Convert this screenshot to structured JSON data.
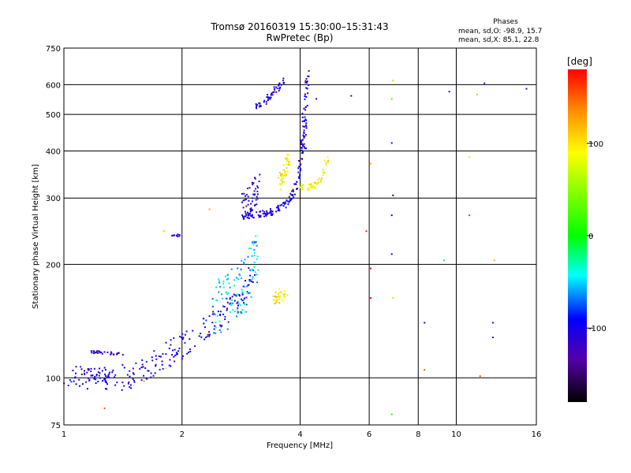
{
  "chart_data": {
    "type": "scatter",
    "title": "Tromsø 20160319 15:30:00–15:31:43",
    "subtitle": "RwPretec (Bp)",
    "xlabel": "Frequency [MHz]",
    "ylabel": "Stationary phase Virtual Height [km]",
    "x_scale": "log",
    "y_scale": "log",
    "xlim": [
      1,
      16
    ],
    "ylim": [
      75,
      750
    ],
    "grid": true,
    "x_ticks": [
      "1",
      "2",
      "4",
      "6",
      "8",
      "10",
      "16"
    ],
    "x_tick_values": [
      1,
      2,
      4,
      6,
      8,
      10,
      16
    ],
    "y_ticks": [
      "750",
      "600",
      "500",
      "400",
      "300",
      "200",
      "100",
      "75"
    ],
    "y_tick_values": [
      750,
      600,
      500,
      400,
      300,
      200,
      100,
      75
    ],
    "phase_stats": {
      "title": "Phases",
      "line_o": "mean, sd,O: -98.9, 15.7",
      "line_x": "mean, sd,X:  85.1, 22.8"
    },
    "colorbar": {
      "label": "[deg]",
      "range": [
        -180,
        180
      ],
      "ticks": [
        "100",
        "0",
        "-100"
      ],
      "tick_values": [
        100,
        0,
        -100
      ]
    },
    "traces": [
      {
        "x": [
          1.0,
          1.12,
          1.25,
          1.4,
          1.5,
          1.62,
          1.75,
          1.9,
          2.0,
          2.15,
          2.35,
          2.55,
          2.75,
          2.9,
          3.05
        ],
        "y": [
          100,
          99,
          98.5,
          99.5,
          102,
          106,
          112,
          118,
          122,
          128,
          138,
          148,
          160,
          175,
          192
        ],
        "spread": 0.08,
        "phase": -105,
        "n": 220
      },
      {
        "x": [
          2.4,
          2.6,
          2.8,
          3.0,
          3.1
        ],
        "y": [
          150,
          160,
          172,
          188,
          205
        ],
        "spread": 0.18,
        "phase": -50,
        "n": 110
      },
      {
        "x": [
          1.18,
          1.25,
          1.35,
          1.45
        ],
        "y": [
          117,
          116.5,
          116,
          116
        ],
        "spread": 0.01,
        "phase": -110,
        "n": 30
      },
      {
        "x": [
          1.12,
          1.2,
          1.3
        ],
        "y": [
          105,
          103,
          102
        ],
        "spread": 0.03,
        "phase": -105,
        "n": 20
      },
      {
        "x": [
          1.9,
          1.96
        ],
        "y": [
          238,
          238
        ],
        "spread": 0.01,
        "phase": -110,
        "n": 10
      },
      {
        "x": [
          2.85,
          3.0,
          3.2,
          3.4,
          3.6,
          3.75,
          3.85,
          3.95,
          4.0,
          4.05,
          4.1
        ],
        "y": [
          268,
          270,
          272,
          276,
          285,
          295,
          310,
          335,
          370,
          430,
          520
        ],
        "spread": 0.02,
        "phase": -105,
        "n": 150
      },
      {
        "x": [
          4.1,
          4.12,
          4.14,
          4.16,
          4.18
        ],
        "y": [
          400,
          460,
          520,
          590,
          640
        ],
        "spread": 0.03,
        "phase": -110,
        "n": 40
      },
      {
        "x": [
          2.85,
          3.0,
          3.15
        ],
        "y": [
          280,
          300,
          320
        ],
        "spread": 0.09,
        "phase": -105,
        "n": 50
      },
      {
        "x": [
          3.1,
          3.3,
          3.5,
          3.65
        ],
        "y": [
          520,
          550,
          585,
          620
        ],
        "spread": 0.02,
        "phase": -105,
        "n": 55
      },
      {
        "x": [
          3.55,
          3.65,
          3.75
        ],
        "y": [
          330,
          355,
          380
        ],
        "spread": 0.05,
        "phase": 95,
        "n": 45
      },
      {
        "x": [
          4.0,
          4.2,
          4.4,
          4.6,
          4.7
        ],
        "y": [
          318,
          320,
          325,
          345,
          385
        ],
        "spread": 0.02,
        "phase": 90,
        "n": 55
      },
      {
        "x": [
          3.4,
          3.55,
          3.7
        ],
        "y": [
          162,
          165,
          168
        ],
        "spread": 0.04,
        "phase": 100,
        "n": 30
      }
    ],
    "points": [
      {
        "x": 6.9,
        "y": 615,
        "phase": 110
      },
      {
        "x": 6.85,
        "y": 550,
        "phase": 20
      },
      {
        "x": 6.85,
        "y": 420,
        "phase": -110
      },
      {
        "x": 6.9,
        "y": 305,
        "phase": -95
      },
      {
        "x": 6.85,
        "y": 270,
        "phase": -110
      },
      {
        "x": 6.85,
        "y": 213,
        "phase": -115
      },
      {
        "x": 6.9,
        "y": 163,
        "phase": 110
      },
      {
        "x": 6.85,
        "y": 80,
        "phase": 10
      },
      {
        "x": 6.05,
        "y": 370,
        "phase": 120
      },
      {
        "x": 5.9,
        "y": 245,
        "phase": 170
      },
      {
        "x": 6.05,
        "y": 195,
        "phase": 175
      },
      {
        "x": 6.05,
        "y": 163,
        "phase": 178
      },
      {
        "x": 5.4,
        "y": 560,
        "phase": -115
      },
      {
        "x": 4.4,
        "y": 550,
        "phase": -115
      },
      {
        "x": 9.6,
        "y": 575,
        "phase": -120
      },
      {
        "x": 11.3,
        "y": 565,
        "phase": 115
      },
      {
        "x": 11.8,
        "y": 605,
        "phase": -80
      },
      {
        "x": 15.1,
        "y": 585,
        "phase": -120
      },
      {
        "x": 10.8,
        "y": 385,
        "phase": 105
      },
      {
        "x": 10.8,
        "y": 270,
        "phase": 165
      },
      {
        "x": 12.5,
        "y": 205,
        "phase": 120
      },
      {
        "x": 9.3,
        "y": 205,
        "phase": -10
      },
      {
        "x": 12.4,
        "y": 140,
        "phase": -115
      },
      {
        "x": 12.4,
        "y": 128,
        "phase": -115
      },
      {
        "x": 8.3,
        "y": 140,
        "phase": -110
      },
      {
        "x": 8.3,
        "y": 105,
        "phase": 150
      },
      {
        "x": 11.5,
        "y": 101,
        "phase": 155
      },
      {
        "x": 1.8,
        "y": 245,
        "phase": 110
      },
      {
        "x": 2.35,
        "y": 280,
        "phase": 120
      },
      {
        "x": 1.27,
        "y": 83,
        "phase": 150
      },
      {
        "x": 1.6,
        "y": 98,
        "phase": 130
      },
      {
        "x": 1.82,
        "y": 106,
        "phase": 105
      }
    ]
  }
}
